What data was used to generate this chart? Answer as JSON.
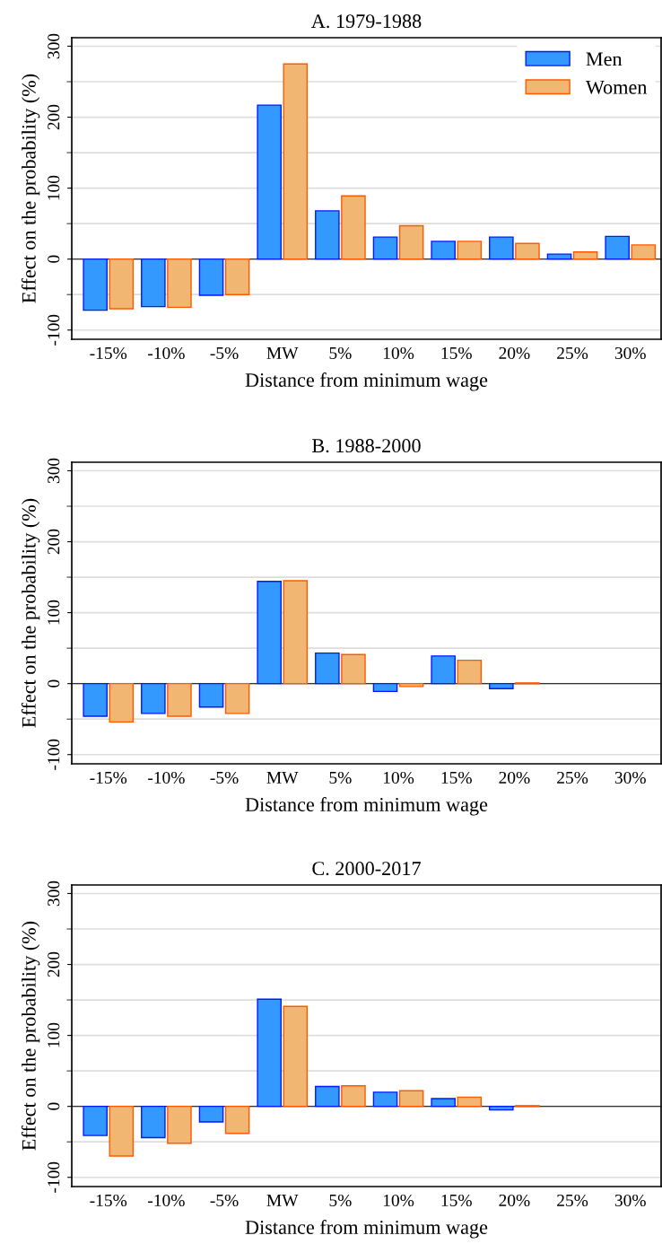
{
  "chart_data": [
    {
      "type": "bar",
      "title": "A. 1979-1988",
      "xlabel": "Distance from minimum wage",
      "ylabel": "Effect on the probability (%)",
      "categories": [
        "-15%",
        "-10%",
        "-5%",
        "MW",
        "5%",
        "10%",
        "15%",
        "20%",
        "25%",
        "30%"
      ],
      "series": [
        {
          "name": "Men",
          "color": "#3399ff",
          "values": [
            -72,
            -67,
            -51,
            217,
            68,
            31,
            25,
            31,
            7,
            32
          ]
        },
        {
          "name": "Women",
          "color": "#f0b672",
          "values": [
            -70,
            -68,
            -50,
            275,
            89,
            47,
            25,
            22,
            10,
            20
          ]
        }
      ],
      "ylim": [
        -113,
        312
      ],
      "yticks": [
        -100,
        {
          "value": -50,
          "label": null
        },
        0,
        {
          "value": 50,
          "label": null
        },
        100,
        {
          "value": 150,
          "label": null
        },
        200,
        {
          "value": 250,
          "label": null
        },
        300
      ],
      "ref_lines": [
        {
          "axis": "y",
          "value": 0,
          "color": "#333333"
        }
      ],
      "grid": "y",
      "legend": "top right"
    },
    {
      "type": "bar",
      "title": "B. 1988-2000",
      "xlabel": "Distance from minimum wage",
      "ylabel": "Effect on the probability (%)",
      "categories": [
        "-15%",
        "-10%",
        "-5%",
        "MW",
        "5%",
        "10%",
        "15%",
        "20%",
        "25%",
        "30%"
      ],
      "series": [
        {
          "color": "#3399ff",
          "values": [
            -46,
            -42,
            -33,
            144,
            43,
            -11,
            39,
            -7,
            null,
            null
          ]
        },
        {
          "color": "#f0b672",
          "values": [
            -54,
            -46,
            -42,
            145,
            41,
            -4,
            33,
            1,
            null,
            null
          ]
        }
      ],
      "ylim": [
        -113,
        312
      ],
      "yticks": [
        -100,
        {
          "value": -50,
          "label": null
        },
        0,
        {
          "value": 50,
          "label": null
        },
        100,
        {
          "value": 150,
          "label": null
        },
        200,
        {
          "value": 250,
          "label": null
        },
        300
      ],
      "ref_lines": [
        {
          "axis": "y",
          "value": 0,
          "color": "#333333"
        }
      ],
      "grid": "y"
    },
    {
      "type": "bar",
      "title": "C. 2000-2017",
      "xlabel": "Distance from minimum wage",
      "ylabel": "Effect on the probability (%)",
      "categories": [
        "-15%",
        "-10%",
        "-5%",
        "MW",
        "5%",
        "10%",
        "15%",
        "20%",
        "25%",
        "30%"
      ],
      "series": [
        {
          "color": "#3399ff",
          "values": [
            -41,
            -44,
            -22,
            151,
            28,
            20,
            11,
            -5,
            null,
            null
          ]
        },
        {
          "color": "#f0b672",
          "values": [
            -70,
            -52,
            -38,
            141,
            29,
            22,
            13,
            1,
            null,
            null
          ]
        }
      ],
      "ylim": [
        -113,
        312
      ],
      "yticks": [
        -100,
        {
          "value": -50,
          "label": null
        },
        0,
        {
          "value": 50,
          "label": null
        },
        100,
        {
          "value": 150,
          "label": null
        },
        200,
        {
          "value": 250,
          "label": null
        },
        300
      ],
      "ref_lines": [
        {
          "axis": "y",
          "value": 0,
          "color": "#333333"
        }
      ],
      "grid": "y"
    }
  ]
}
